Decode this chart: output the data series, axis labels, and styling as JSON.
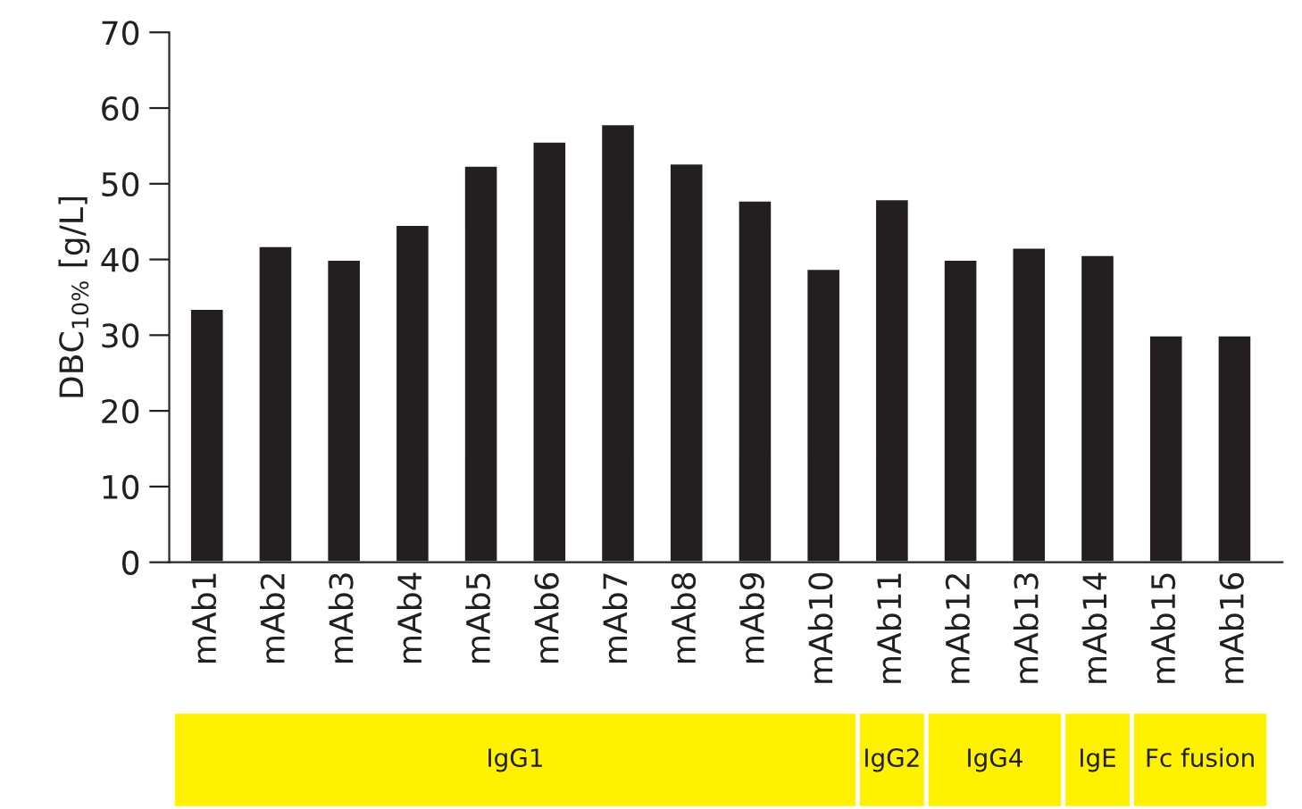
{
  "chart_data": {
    "type": "bar",
    "ylabel": "DBC$_{10%}$ [g/L]",
    "categories": [
      "mAb1",
      "mAb2",
      "mAb3",
      "mAb4",
      "mAb5",
      "mAb6",
      "mAb7",
      "mAb8",
      "mAb9",
      "mAb10",
      "mAb11",
      "mAb12",
      "mAb13",
      "mAb14",
      "mAb15",
      "mAb16"
    ],
    "series": [
      {
        "color": "#231f20",
        "values": [
          33.5,
          41.8,
          40,
          44.6,
          52.4,
          55.6,
          57.9,
          52.7,
          47.8,
          38.8,
          48,
          40,
          41.6,
          40.6,
          30,
          30
        ]
      }
    ],
    "ylim": [
      0,
      70
    ],
    "yticks": [
      0,
      10,
      20,
      30,
      40,
      50,
      60,
      70
    ],
    "grid": false,
    "annotations": [
      "IgG1",
      "IgG2",
      "IgG4",
      "IgE",
      "Fc fusion"
    ]
  }
}
